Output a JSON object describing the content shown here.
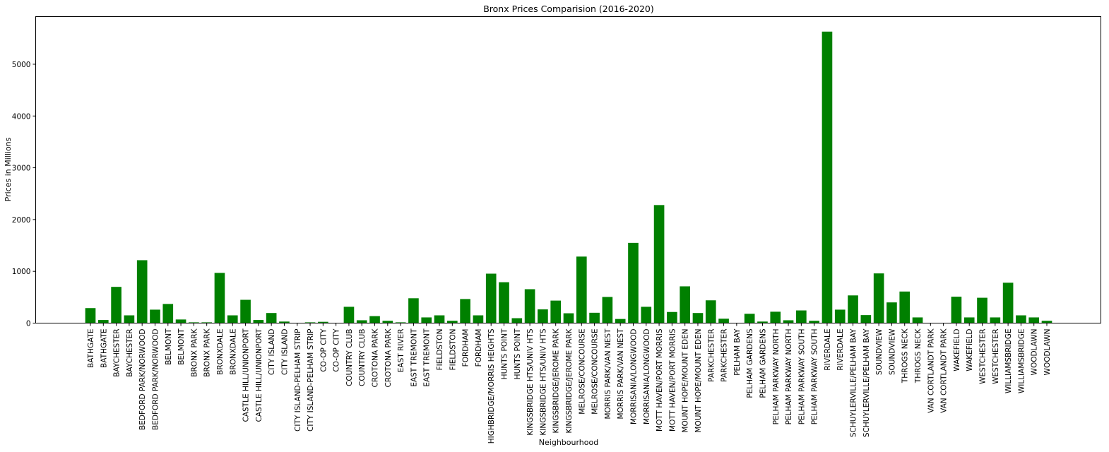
{
  "chart_data": {
    "type": "bar",
    "title": "Bronx Prices Comparision (2016-2020)",
    "xlabel": "Neighbourhood",
    "ylabel": "Prices in Millions",
    "ylim": [
      0,
      5920
    ],
    "yticks": [
      0,
      1000,
      2000,
      3000,
      4000,
      5000
    ],
    "grid": false,
    "bar_color": "#008000",
    "categories": [
      "BATHGATE",
      "BATHGATE",
      "BAYCHESTER",
      "BAYCHESTER",
      "BEDFORD PARK/NORWOOD",
      "BEDFORD PARK/NORWOOD",
      "BELMONT",
      "BELMONT",
      "BRONX PARK",
      "BRONX PARK",
      "BRONXDALE",
      "BRONXDALE",
      "CASTLE HILL/UNIONPORT",
      "CASTLE HILL/UNIONPORT",
      "CITY ISLAND",
      "CITY ISLAND",
      "CITY ISLAND-PELHAM STRIP",
      "CITY ISLAND-PELHAM STRIP",
      "CO-OP CITY",
      "CO-OP CITY",
      "COUNTRY CLUB",
      "COUNTRY CLUB",
      "CROTONA PARK",
      "CROTONA PARK",
      "EAST RIVER",
      "EAST TREMONT",
      "EAST TREMONT",
      "FIELDSTON",
      "FIELDSTON",
      "FORDHAM",
      "FORDHAM",
      "HIGHBRIDGE/MORRIS HEIGHTS",
      "HUNTS POINT",
      "HUNTS POINT",
      "KINGSBRIDGE HTS/UNIV HTS",
      "KINGSBRIDGE HTS/UNIV HTS",
      "KINGSBRIDGE/JEROME PARK",
      "KINGSBRIDGE/JEROME PARK",
      "MELROSE/CONCOURSE",
      "MELROSE/CONCOURSE",
      "MORRIS PARK/VAN NEST",
      "MORRIS PARK/VAN NEST",
      "MORRISANIA/LONGWOOD",
      "MORRISANIA/LONGWOOD",
      "MOTT HAVEN/PORT MORRIS",
      "MOTT HAVEN/PORT MORRIS",
      "MOUNT HOPE/MOUNT EDEN",
      "MOUNT HOPE/MOUNT EDEN",
      "PARKCHESTER",
      "PARKCHESTER",
      "PELHAM BAY",
      "PELHAM GARDENS",
      "PELHAM GARDENS",
      "PELHAM PARKWAY NORTH",
      "PELHAM PARKWAY NORTH",
      "PELHAM PARKWAY SOUTH",
      "PELHAM PARKWAY SOUTH",
      "RIVERDALE",
      "RIVERDALE",
      "SCHUYLERVILLE/PELHAM BAY",
      "SCHUYLERVILLE/PELHAM BAY",
      "SOUNDVIEW",
      "SOUNDVIEW",
      "THROGS NECK",
      "THROGS NECK",
      "VAN CORTLANDT PARK",
      "VAN CORTLANDT PARK",
      "WAKEFIELD",
      "WAKEFIELD",
      "WESTCHESTER",
      "WESTCHESTER",
      "WILLIAMSBRIDGE",
      "WILLIAMSBRIDGE",
      "WOODLAWN",
      "WOODLAWN"
    ],
    "values": [
      290,
      60,
      700,
      150,
      1215,
      260,
      370,
      70,
      15,
      15,
      970,
      150,
      450,
      60,
      195,
      30,
      5,
      15,
      25,
      5,
      315,
      55,
      135,
      45,
      15,
      480,
      110,
      150,
      45,
      465,
      150,
      955,
      790,
      95,
      655,
      265,
      435,
      190,
      1285,
      200,
      505,
      80,
      1550,
      315,
      2280,
      215,
      710,
      195,
      440,
      85,
      5,
      180,
      30,
      220,
      55,
      245,
      45,
      5630,
      260,
      535,
      155,
      960,
      400,
      610,
      110,
      5,
      5,
      510,
      110,
      490,
      110,
      780,
      150,
      110,
      45
    ]
  }
}
